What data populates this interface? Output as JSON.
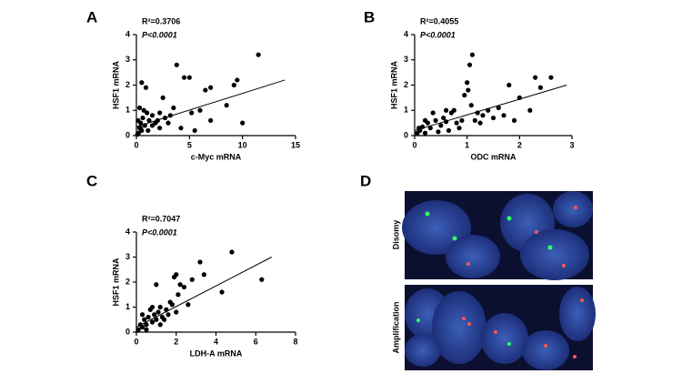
{
  "chart_data": [
    {
      "type": "scatter",
      "panel_label": "A",
      "annotation_r2": "R²=0.3706",
      "annotation_p": "P<0.0001",
      "x_label": "c-Myc mRNA",
      "y_label": "HSF1 mRNA",
      "color": "#000000",
      "xlim": [
        0,
        15
      ],
      "ylim": [
        0,
        4
      ],
      "xticks": [
        0,
        5,
        10,
        15
      ],
      "yticks": [
        0,
        1,
        2,
        3,
        4
      ],
      "trend_line": {
        "x": [
          0,
          14
        ],
        "y": [
          0.35,
          2.2
        ]
      },
      "x": [
        0.2,
        0.3,
        0.4,
        0.5,
        0.6,
        0.7,
        0.8,
        1.0,
        1.1,
        0.3,
        0.5,
        0.9,
        1.2,
        1.5,
        1.8,
        2.0,
        2.2,
        2.5,
        2.7,
        3.0,
        3.2,
        3.5,
        3.8,
        4.2,
        4.5,
        5.0,
        5.2,
        5.5,
        6.0,
        6.5,
        7.0,
        7.0,
        8.5,
        9.2,
        9.5,
        10.0,
        11.5,
        0.1,
        0.15,
        0.4,
        1.5,
        2.2
      ],
      "values": [
        0.1,
        0.3,
        0.5,
        0.2,
        0.7,
        1.0,
        0.4,
        0.9,
        0.2,
        1.1,
        2.1,
        1.9,
        0.6,
        0.8,
        0.5,
        0.6,
        0.9,
        1.5,
        0.7,
        0.5,
        0.8,
        1.1,
        2.8,
        0.3,
        2.3,
        2.3,
        0.9,
        0.2,
        1.0,
        1.8,
        1.9,
        0.6,
        1.2,
        2.0,
        2.2,
        0.5,
        3.2,
        0.05,
        0.6,
        0.3,
        0.4,
        0.3
      ]
    },
    {
      "type": "scatter",
      "panel_label": "B",
      "annotation_r2": "R²=0.4055",
      "annotation_p": "P<0.0001",
      "x_label": "ODC mRNA",
      "y_label": "HSF1 mRNA",
      "color": "#000000",
      "xlim": [
        0,
        3
      ],
      "ylim": [
        0,
        4
      ],
      "xticks": [
        0,
        1,
        2,
        3
      ],
      "yticks": [
        0,
        1,
        2,
        3,
        4
      ],
      "trend_line": {
        "x": [
          0,
          2.9
        ],
        "y": [
          0.2,
          2.0
        ]
      },
      "x": [
        0.05,
        0.1,
        0.15,
        0.2,
        0.25,
        0.3,
        0.35,
        0.4,
        0.45,
        0.5,
        0.55,
        0.6,
        0.65,
        0.7,
        0.75,
        0.8,
        0.85,
        0.9,
        0.95,
        1.0,
        1.02,
        1.05,
        1.08,
        1.1,
        1.15,
        1.2,
        1.25,
        1.3,
        1.4,
        1.5,
        1.6,
        1.7,
        1.8,
        1.9,
        2.0,
        2.2,
        2.3,
        2.4,
        2.6,
        0.08,
        0.2,
        0.6
      ],
      "values": [
        0.1,
        0.2,
        0.35,
        0.1,
        0.5,
        0.3,
        0.9,
        0.6,
        0.15,
        0.4,
        0.7,
        0.55,
        0.2,
        0.9,
        1.0,
        0.5,
        0.3,
        0.6,
        1.6,
        2.1,
        1.8,
        2.8,
        1.2,
        3.2,
        0.6,
        0.9,
        0.5,
        0.8,
        1.0,
        0.7,
        1.1,
        0.8,
        2.0,
        0.6,
        1.5,
        1.0,
        2.3,
        1.9,
        2.3,
        0.3,
        0.6,
        1.0
      ]
    },
    {
      "type": "scatter",
      "panel_label": "C",
      "annotation_r2": "R²=0.7047",
      "annotation_p": "P<0.0001",
      "x_label": "LDH-A mRNA",
      "y_label": "HSF1 mRNA",
      "color": "#000000",
      "xlim": [
        0,
        8
      ],
      "ylim": [
        0,
        4
      ],
      "xticks": [
        0,
        2,
        4,
        6,
        8
      ],
      "yticks": [
        0,
        1,
        2,
        3,
        4
      ],
      "trend_line": {
        "x": [
          0,
          6.8
        ],
        "y": [
          0.2,
          3.0
        ]
      },
      "x": [
        0.1,
        0.2,
        0.3,
        0.4,
        0.5,
        0.6,
        0.7,
        0.8,
        0.9,
        1.0,
        1.1,
        1.2,
        1.3,
        1.5,
        1.6,
        1.7,
        1.8,
        1.9,
        2.0,
        2.1,
        2.2,
        2.4,
        2.6,
        2.8,
        3.2,
        3.4,
        4.3,
        4.8,
        6.3,
        0.3,
        0.5,
        0.8,
        1.0,
        1.4,
        2.0,
        1.2
      ],
      "values": [
        0.1,
        0.3,
        0.2,
        0.5,
        0.3,
        0.6,
        0.9,
        0.4,
        0.7,
        0.5,
        0.8,
        1.0,
        0.6,
        0.9,
        0.7,
        1.2,
        1.1,
        2.2,
        2.3,
        1.5,
        1.9,
        1.8,
        1.1,
        2.1,
        2.8,
        2.3,
        1.6,
        3.2,
        2.1,
        0.7,
        0.1,
        1.0,
        1.9,
        0.5,
        0.8,
        0.3
      ]
    }
  ],
  "image_panel": {
    "panel_label": "D",
    "row_labels": [
      "Disomy",
      "Amplification"
    ]
  }
}
